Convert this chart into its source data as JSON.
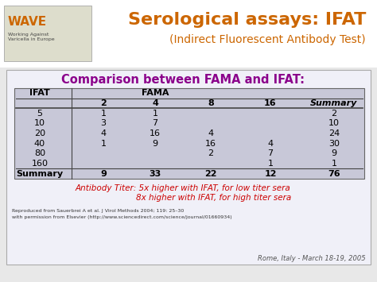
{
  "title_line1": "Serological assays: IFAT",
  "title_line2": "(Indirect Fluorescent Antibody Test)",
  "title_color": "#CC6600",
  "slide_bg": "#C8C8E8",
  "header_bg": "#FFFFFF",
  "table_bg": "#C8C8D8",
  "table_title": "Comparison between FAMA and IFAT:",
  "table_title_color": "#8B008B",
  "col_headers": [
    "IFAT",
    "2",
    "4",
    "8",
    "16",
    "Summary"
  ],
  "fama_label": "FAMA",
  "rows": [
    [
      "5",
      "1",
      "1",
      "",
      "",
      "2"
    ],
    [
      "10",
      "3",
      "7",
      "",
      "",
      "10"
    ],
    [
      "20",
      "4",
      "16",
      "4",
      "",
      "24"
    ],
    [
      "40",
      "1",
      "9",
      "16",
      "4",
      "30"
    ],
    [
      "80",
      "",
      "",
      "2",
      "7",
      "9"
    ],
    [
      "160",
      "",
      "",
      "",
      "1",
      "1"
    ],
    [
      "Summary",
      "9",
      "33",
      "22",
      "12",
      "76"
    ]
  ],
  "antibody_text_line1": "Antibody Titer: 5x higher with IFAT, for low titer sera",
  "antibody_text_line2": "                        8x higher with IFAT, for high titer sera",
  "antibody_color": "#CC0000",
  "footnote_line1": "Reproduced from Sauerbrei A et al. J Virol Methods 2004; 119: 25–30",
  "footnote_line2": "with permission from Elsevier (http://www.sciencedirect.com/science/journal/01660934)",
  "footnote_color": "#333333",
  "location_text": "Rome, Italy - March 18-19, 2005",
  "location_color": "#555555",
  "outer_bg": "#E8E8E8"
}
